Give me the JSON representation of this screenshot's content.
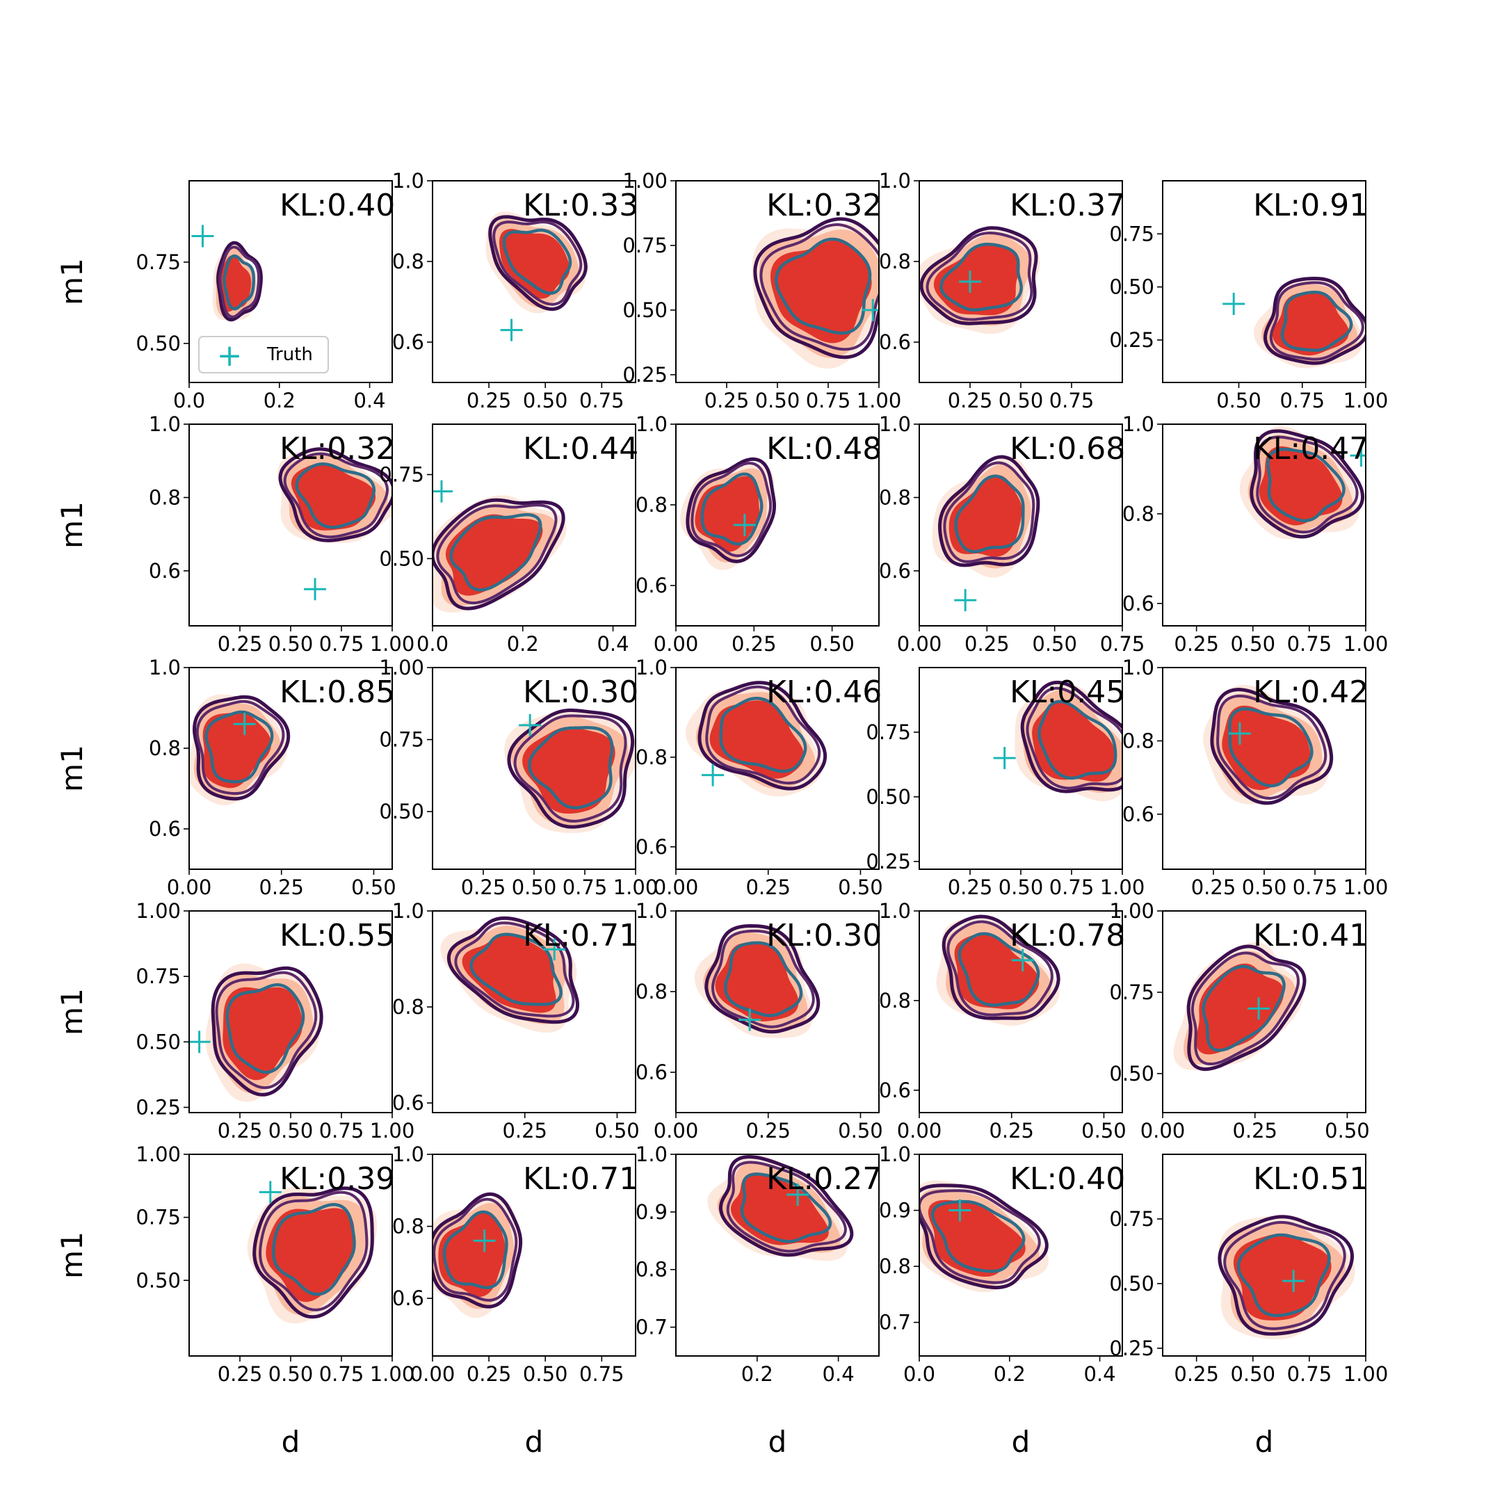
{
  "figure": {
    "legend": {
      "marker": "+",
      "label": "Truth"
    },
    "xlabel": "d",
    "ylabel": "m1"
  },
  "chart_data": {
    "type": "contour-grid",
    "rows": 5,
    "cols": 5,
    "truth_color": "#1ab6b6",
    "fill_colors": [
      "#fde5d9",
      "#f9b79a",
      "#de2d26"
    ],
    "line_colors": [
      "#3b0f4f",
      "#5c2a6a",
      "#2f6d8a"
    ],
    "panels": [
      {
        "kl": "KL:0.40",
        "xlim": [
          0.0,
          0.45
        ],
        "ylim": [
          0.38,
          1.0
        ],
        "xticks": [
          0.0,
          0.2,
          0.4
        ],
        "xtick_labels": [
          "0.0",
          "0.2",
          "0.4"
        ],
        "yticks": [
          0.5,
          0.75
        ],
        "ytick_labels": [
          "0.50",
          "0.75"
        ],
        "truth": [
          0.03,
          0.83
        ],
        "center": [
          0.1,
          0.68
        ],
        "spread": [
          0.2,
          0.34
        ],
        "skew": 0.0
      },
      {
        "kl": "KL:0.33",
        "xlim": [
          0.0,
          0.9
        ],
        "ylim": [
          0.5,
          1.0
        ],
        "xticks": [
          0.25,
          0.5,
          0.75
        ],
        "xtick_labels": [
          "0.25",
          "0.50",
          "0.75"
        ],
        "yticks": [
          0.6,
          0.8,
          1.0
        ],
        "ytick_labels": [
          "0.6",
          "0.8",
          "1.0"
        ],
        "truth": [
          0.35,
          0.63
        ],
        "center": [
          0.45,
          0.8
        ],
        "spread": [
          0.42,
          0.42
        ],
        "skew": 0.3
      },
      {
        "kl": "KL:0.32",
        "xlim": [
          0.0,
          1.0
        ],
        "ylim": [
          0.22,
          1.0
        ],
        "xticks": [
          0.25,
          0.5,
          0.75,
          1.0
        ],
        "xtick_labels": [
          "0.25",
          "0.50",
          "0.75",
          "1.00"
        ],
        "yticks": [
          0.25,
          0.5,
          0.75,
          1.0
        ],
        "ytick_labels": [
          "0.25",
          "0.50",
          "0.75",
          "1.00"
        ],
        "truth": [
          0.97,
          0.5
        ],
        "center": [
          0.72,
          0.58
        ],
        "spread": [
          0.62,
          0.62
        ],
        "skew": 0.0
      },
      {
        "kl": "KL:0.37",
        "xlim": [
          0.0,
          1.0
        ],
        "ylim": [
          0.5,
          1.0
        ],
        "xticks": [
          0.25,
          0.5,
          0.75
        ],
        "xtick_labels": [
          "0.25",
          "0.50",
          "0.75"
        ],
        "yticks": [
          0.6,
          0.8,
          1.0
        ],
        "ytick_labels": [
          "0.6",
          "0.8",
          "1.0"
        ],
        "truth": [
          0.25,
          0.75
        ],
        "center": [
          0.3,
          0.75
        ],
        "spread": [
          0.52,
          0.45
        ],
        "skew": -0.2
      },
      {
        "kl": "KL:0.91",
        "xlim": [
          0.2,
          1.0
        ],
        "ylim": [
          0.05,
          1.0
        ],
        "xticks": [
          0.5,
          0.75,
          1.0
        ],
        "xtick_labels": [
          "0.50",
          "0.75",
          "1.00"
        ],
        "yticks": [
          0.25,
          0.5,
          0.75
        ],
        "ytick_labels": [
          "0.25",
          "0.50",
          "0.75"
        ],
        "truth": [
          0.48,
          0.42
        ],
        "center": [
          0.78,
          0.32
        ],
        "spread": [
          0.45,
          0.4
        ],
        "skew": 0.0
      },
      {
        "kl": "KL:0.32",
        "xlim": [
          0.0,
          1.0
        ],
        "ylim": [
          0.45,
          1.0
        ],
        "xticks": [
          0.25,
          0.5,
          0.75,
          1.0
        ],
        "xtick_labels": [
          "0.25",
          "0.50",
          "0.75",
          "1.00"
        ],
        "yticks": [
          0.6,
          0.8,
          1.0
        ],
        "ytick_labels": [
          "0.6",
          "0.8",
          "1.0"
        ],
        "truth": [
          0.62,
          0.55
        ],
        "center": [
          0.7,
          0.8
        ],
        "spread": [
          0.5,
          0.42
        ],
        "skew": 0.2
      },
      {
        "kl": "KL:0.44",
        "xlim": [
          0.0,
          0.45
        ],
        "ylim": [
          0.3,
          0.9
        ],
        "xticks": [
          0.0,
          0.2,
          0.4
        ],
        "xtick_labels": [
          "0.0",
          "0.2",
          "0.4"
        ],
        "yticks": [
          0.5,
          0.75
        ],
        "ytick_labels": [
          "0.50",
          "0.75"
        ],
        "truth": [
          0.02,
          0.7
        ],
        "center": [
          0.13,
          0.52
        ],
        "spread": [
          0.55,
          0.5
        ],
        "skew": -0.4
      },
      {
        "kl": "KL:0.48",
        "xlim": [
          0.0,
          0.65
        ],
        "ylim": [
          0.5,
          1.0
        ],
        "xticks": [
          0.0,
          0.25,
          0.5
        ],
        "xtick_labels": [
          "0.00",
          "0.25",
          "0.50"
        ],
        "yticks": [
          0.6,
          0.8,
          1.0
        ],
        "ytick_labels": [
          "0.6",
          "0.8",
          "1.0"
        ],
        "truth": [
          0.22,
          0.75
        ],
        "center": [
          0.17,
          0.78
        ],
        "spread": [
          0.4,
          0.45
        ],
        "skew": -0.15
      },
      {
        "kl": "KL:0.68",
        "xlim": [
          0.0,
          0.75
        ],
        "ylim": [
          0.45,
          1.0
        ],
        "xticks": [
          0.0,
          0.25,
          0.5,
          0.75
        ],
        "xtick_labels": [
          "0.00",
          "0.25",
          "0.50",
          "0.75"
        ],
        "yticks": [
          0.6,
          0.8,
          1.0
        ],
        "ytick_labels": [
          "0.6",
          "0.8",
          "1.0"
        ],
        "truth": [
          0.17,
          0.52
        ],
        "center": [
          0.25,
          0.74
        ],
        "spread": [
          0.45,
          0.5
        ],
        "skew": -0.2
      },
      {
        "kl": "KL:0.47",
        "xlim": [
          0.1,
          1.0
        ],
        "ylim": [
          0.55,
          1.0
        ],
        "xticks": [
          0.25,
          0.5,
          0.75,
          1.0
        ],
        "xtick_labels": [
          "0.25",
          "0.50",
          "0.75",
          "1.00"
        ],
        "yticks": [
          0.6,
          0.8,
          1.0
        ],
        "ytick_labels": [
          "0.6",
          "0.8",
          "1.0"
        ],
        "truth": [
          0.98,
          0.93
        ],
        "center": [
          0.7,
          0.86
        ],
        "spread": [
          0.5,
          0.48
        ],
        "skew": 0.15
      },
      {
        "kl": "KL:0.85",
        "xlim": [
          0.0,
          0.55
        ],
        "ylim": [
          0.5,
          1.0
        ],
        "xticks": [
          0.0,
          0.25,
          0.5
        ],
        "xtick_labels": [
          "0.00",
          "0.25",
          "0.50"
        ],
        "yticks": [
          0.6,
          0.8,
          1.0
        ],
        "ytick_labels": [
          "0.6",
          "0.8",
          "1.0"
        ],
        "truth": [
          0.15,
          0.86
        ],
        "center": [
          0.12,
          0.8
        ],
        "spread": [
          0.42,
          0.48
        ],
        "skew": -0.1
      },
      {
        "kl": "KL:0.30",
        "xlim": [
          0.0,
          1.0
        ],
        "ylim": [
          0.3,
          1.0
        ],
        "xticks": [
          0.25,
          0.5,
          0.75,
          1.0
        ],
        "xtick_labels": [
          "0.25",
          "0.50",
          "0.75",
          "1.00"
        ],
        "yticks": [
          0.5,
          0.75,
          1.0
        ],
        "ytick_labels": [
          "0.50",
          "0.75",
          "1.00"
        ],
        "truth": [
          0.48,
          0.8
        ],
        "center": [
          0.68,
          0.65
        ],
        "spread": [
          0.55,
          0.55
        ],
        "skew": 0.0
      },
      {
        "kl": "KL:0.46",
        "xlim": [
          0.0,
          0.55
        ],
        "ylim": [
          0.55,
          1.0
        ],
        "xticks": [
          0.0,
          0.25,
          0.5
        ],
        "xtick_labels": [
          "0.00",
          "0.25",
          "0.50"
        ],
        "yticks": [
          0.6,
          0.8,
          1.0
        ],
        "ytick_labels": [
          "0.6",
          "0.8",
          "1.0"
        ],
        "truth": [
          0.1,
          0.76
        ],
        "center": [
          0.22,
          0.84
        ],
        "spread": [
          0.55,
          0.48
        ],
        "skew": 0.35
      },
      {
        "kl": "KL:0.45",
        "xlim": [
          0.0,
          1.0
        ],
        "ylim": [
          0.22,
          1.0
        ],
        "xticks": [
          0.25,
          0.5,
          0.75,
          1.0
        ],
        "xtick_labels": [
          "0.25",
          "0.50",
          "0.75",
          "1.00"
        ],
        "yticks": [
          0.25,
          0.5,
          0.75
        ],
        "ytick_labels": [
          "0.25",
          "0.50",
          "0.75"
        ],
        "truth": [
          0.42,
          0.65
        ],
        "center": [
          0.75,
          0.7
        ],
        "spread": [
          0.5,
          0.5
        ],
        "skew": 0.3
      },
      {
        "kl": "KL:0.42",
        "xlim": [
          0.0,
          1.0
        ],
        "ylim": [
          0.45,
          1.0
        ],
        "xticks": [
          0.25,
          0.5,
          0.75,
          1.0
        ],
        "xtick_labels": [
          "0.25",
          "0.50",
          "0.75",
          "1.00"
        ],
        "yticks": [
          0.6,
          0.8,
          1.0
        ],
        "ytick_labels": [
          "0.6",
          "0.8",
          "1.0"
        ],
        "truth": [
          0.38,
          0.82
        ],
        "center": [
          0.5,
          0.78
        ],
        "spread": [
          0.55,
          0.5
        ],
        "skew": 0.2
      },
      {
        "kl": "KL:0.55",
        "xlim": [
          0.0,
          1.0
        ],
        "ylim": [
          0.23,
          1.0
        ],
        "xticks": [
          0.25,
          0.5,
          0.75,
          1.0
        ],
        "xtick_labels": [
          "0.25",
          "0.50",
          "0.75",
          "1.00"
        ],
        "yticks": [
          0.25,
          0.5,
          0.75,
          1.0
        ],
        "ytick_labels": [
          "0.25",
          "0.50",
          "0.75",
          "1.00"
        ],
        "truth": [
          0.05,
          0.5
        ],
        "center": [
          0.35,
          0.55
        ],
        "spread": [
          0.5,
          0.58
        ],
        "skew": -0.1
      },
      {
        "kl": "KL:0.71",
        "xlim": [
          0.0,
          0.55
        ],
        "ylim": [
          0.58,
          1.0
        ],
        "xticks": [
          0.25,
          0.5
        ],
        "xtick_labels": [
          "0.25",
          "0.50"
        ],
        "yticks": [
          0.6,
          0.8,
          1.0
        ],
        "ytick_labels": [
          "0.6",
          "0.8",
          "1.0"
        ],
        "truth": [
          0.33,
          0.92
        ],
        "center": [
          0.22,
          0.87
        ],
        "spread": [
          0.55,
          0.48
        ],
        "skew": 0.35
      },
      {
        "kl": "KL:0.30",
        "xlim": [
          0.0,
          0.55
        ],
        "ylim": [
          0.5,
          1.0
        ],
        "xticks": [
          0.0,
          0.25,
          0.5
        ],
        "xtick_labels": [
          "0.00",
          "0.25",
          "0.50"
        ],
        "yticks": [
          0.6,
          0.8,
          1.0
        ],
        "ytick_labels": [
          "0.6",
          "0.8",
          "1.0"
        ],
        "truth": [
          0.2,
          0.73
        ],
        "center": [
          0.22,
          0.82
        ],
        "spread": [
          0.48,
          0.5
        ],
        "skew": 0.2
      },
      {
        "kl": "KL:0.78",
        "xlim": [
          0.0,
          0.55
        ],
        "ylim": [
          0.55,
          1.0
        ],
        "xticks": [
          0.0,
          0.25,
          0.5
        ],
        "xtick_labels": [
          "0.00",
          "0.25",
          "0.50"
        ],
        "yticks": [
          0.6,
          0.8,
          1.0
        ],
        "ytick_labels": [
          "0.6",
          "0.8",
          "1.0"
        ],
        "truth": [
          0.28,
          0.89
        ],
        "center": [
          0.2,
          0.86
        ],
        "spread": [
          0.5,
          0.48
        ],
        "skew": 0.3
      },
      {
        "kl": "KL:0.41",
        "xlim": [
          0.0,
          0.55
        ],
        "ylim": [
          0.38,
          1.0
        ],
        "xticks": [
          0.0,
          0.25,
          0.5
        ],
        "xtick_labels": [
          "0.00",
          "0.25",
          "0.50"
        ],
        "yticks": [
          0.5,
          0.75,
          1.0
        ],
        "ytick_labels": [
          "0.50",
          "0.75",
          "1.00"
        ],
        "truth": [
          0.26,
          0.7
        ],
        "center": [
          0.2,
          0.7
        ],
        "spread": [
          0.5,
          0.55
        ],
        "skew": -0.35
      },
      {
        "kl": "KL:0.39",
        "xlim": [
          0.0,
          1.0
        ],
        "ylim": [
          0.2,
          1.0
        ],
        "xticks": [
          0.25,
          0.5,
          0.75,
          1.0
        ],
        "xtick_labels": [
          "0.25",
          "0.50",
          "0.75",
          "1.00"
        ],
        "yticks": [
          0.5,
          0.75,
          1.0
        ],
        "ytick_labels": [
          "0.50",
          "0.75",
          "1.00"
        ],
        "truth": [
          0.4,
          0.85
        ],
        "center": [
          0.6,
          0.62
        ],
        "spread": [
          0.55,
          0.58
        ],
        "skew": -0.1
      },
      {
        "kl": "KL:0.71",
        "xlim": [
          0.0,
          0.9
        ],
        "ylim": [
          0.44,
          1.0
        ],
        "xticks": [
          0.0,
          0.25,
          0.5,
          0.75
        ],
        "xtick_labels": [
          "0.00",
          "0.25",
          "0.50",
          "0.75"
        ],
        "yticks": [
          0.6,
          0.8,
          1.0
        ],
        "ytick_labels": [
          "0.6",
          "0.8",
          "1.0"
        ],
        "truth": [
          0.23,
          0.76
        ],
        "center": [
          0.18,
          0.72
        ],
        "spread": [
          0.42,
          0.5
        ],
        "skew": -0.1
      },
      {
        "kl": "KL:0.27",
        "xlim": [
          0.0,
          0.5
        ],
        "ylim": [
          0.65,
          1.0
        ],
        "xticks": [
          0.2,
          0.4
        ],
        "xtick_labels": [
          "0.2",
          "0.4"
        ],
        "yticks": [
          0.7,
          0.8,
          0.9,
          1.0
        ],
        "ytick_labels": [
          "0.7",
          "0.8",
          "0.9",
          "1.0"
        ],
        "truth": [
          0.3,
          0.93
        ],
        "center": [
          0.25,
          0.9
        ],
        "spread": [
          0.55,
          0.45
        ],
        "skew": 0.45
      },
      {
        "kl": "KL:0.40",
        "xlim": [
          0.0,
          0.45
        ],
        "ylim": [
          0.64,
          1.0
        ],
        "xticks": [
          0.0,
          0.2,
          0.4
        ],
        "xtick_labels": [
          "0.0",
          "0.2",
          "0.4"
        ],
        "yticks": [
          0.7,
          0.8,
          0.9,
          1.0
        ],
        "ytick_labels": [
          "0.7",
          "0.8",
          "0.9",
          "1.0"
        ],
        "truth": [
          0.09,
          0.9
        ],
        "center": [
          0.12,
          0.85
        ],
        "spread": [
          0.55,
          0.48
        ],
        "skew": 0.4
      },
      {
        "kl": "KL:0.51",
        "xlim": [
          0.1,
          1.0
        ],
        "ylim": [
          0.22,
          1.0
        ],
        "xticks": [
          0.25,
          0.5,
          0.75,
          1.0
        ],
        "xtick_labels": [
          "0.25",
          "0.50",
          "0.75",
          "1.00"
        ],
        "yticks": [
          0.25,
          0.5,
          0.75
        ],
        "ytick_labels": [
          "0.25",
          "0.50",
          "0.75"
        ],
        "truth": [
          0.68,
          0.51
        ],
        "center": [
          0.62,
          0.53
        ],
        "spread": [
          0.58,
          0.55
        ],
        "skew": -0.05
      }
    ]
  }
}
